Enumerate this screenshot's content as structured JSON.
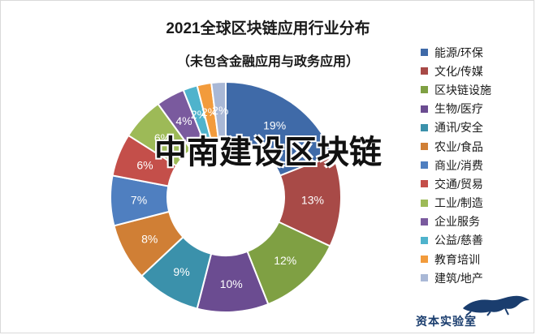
{
  "chart_data": {
    "type": "pie",
    "title": "2021全球区块链应用行业分布",
    "subtitle": "（未包含金融应用与政务应用）",
    "categories": [
      "能源/环保",
      "文化/传媒",
      "区块链设施",
      "生物/医疗",
      "通讯/安全",
      "农业/食品",
      "商业/消费",
      "交通/贸易",
      "工业/制造",
      "企业服务",
      "公益/慈善",
      "教育培训",
      "建筑/地产"
    ],
    "values": [
      19,
      13,
      12,
      10,
      9,
      8,
      7,
      6,
      6,
      4,
      2,
      2,
      2
    ],
    "data_labels": [
      "19%",
      "13%",
      "12%",
      "10%",
      "9%",
      "8%",
      "7%",
      "6%",
      "6%",
      "4%",
      "2%",
      "2%",
      "2%"
    ],
    "colors": [
      "#3f6aa8",
      "#a84a47",
      "#7fa043",
      "#6b4c91",
      "#3b91ab",
      "#d07f35",
      "#4f7fc0",
      "#c44f4a",
      "#9dba57",
      "#7a5a9e",
      "#4fb3cc",
      "#f29b3c",
      "#a9b8d6"
    ],
    "legend_position": "right",
    "style": "doughnut"
  },
  "watermark": "中南建设区块链",
  "brand": {
    "text": "资本实验室",
    "icon": "leopard-logo-icon"
  }
}
